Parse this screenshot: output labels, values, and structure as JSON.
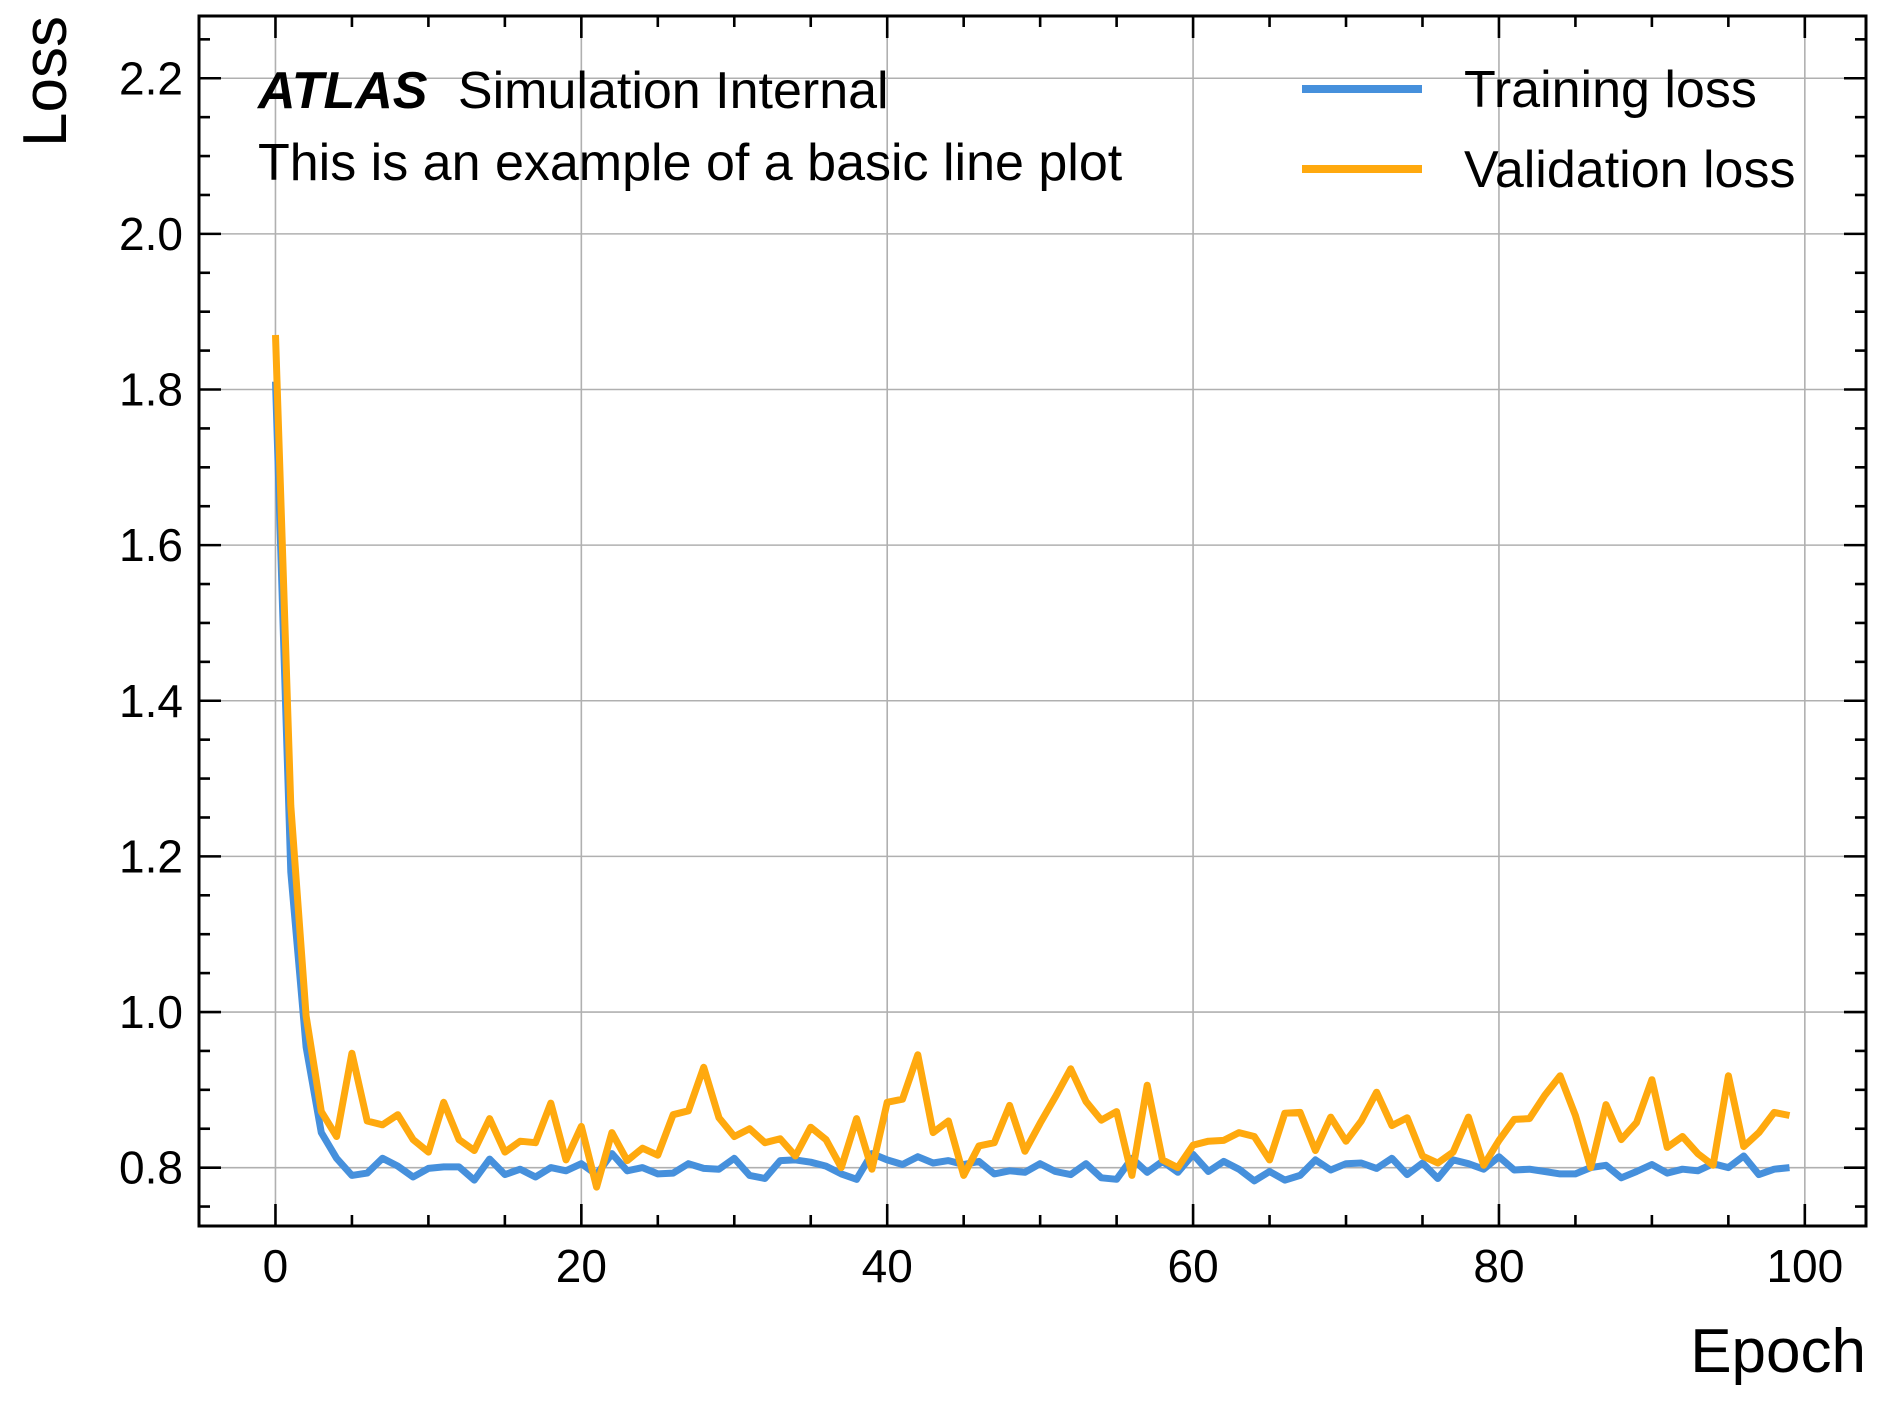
{
  "colors": {
    "training": "#4690dc",
    "validation": "#ffa90e",
    "grid": "#b0b0b0",
    "axes": "#000000"
  },
  "annotation": {
    "experiment": "ATLAS",
    "status": "Simulation Internal",
    "subtitle": "This is an example of a basic line plot"
  },
  "chart_data": {
    "type": "line",
    "title": "",
    "xlabel": "Epoch",
    "ylabel": "Loss",
    "xlim": [
      -5,
      104
    ],
    "ylim": [
      0.725,
      2.28
    ],
    "xticks": [
      0,
      20,
      40,
      60,
      80,
      100
    ],
    "xtick_labels": [
      "0",
      "20",
      "40",
      "60",
      "80",
      "100"
    ],
    "yticks": [
      0.8,
      1.0,
      1.2,
      1.4,
      1.6,
      1.8,
      2.0,
      2.2
    ],
    "ytick_labels": [
      "0.8",
      "1.0",
      "1.2",
      "1.4",
      "1.6",
      "1.8",
      "2.0",
      "2.2"
    ],
    "x_minor_step": 5,
    "y_minor_step": 0.05,
    "grid": true,
    "legend_position": "top-right",
    "series": [
      {
        "name": "Training loss",
        "color": "#4690dc",
        "x": [
          0,
          1,
          2,
          3,
          4,
          5,
          6,
          7,
          8,
          9,
          10,
          11,
          12,
          13,
          14,
          15,
          16,
          17,
          18,
          19,
          20,
          21,
          22,
          23,
          24,
          25,
          26,
          27,
          28,
          29,
          30,
          31,
          32,
          33,
          34,
          35,
          36,
          37,
          38,
          39,
          40,
          41,
          42,
          43,
          44,
          45,
          46,
          47,
          48,
          49,
          50,
          51,
          52,
          53,
          54,
          55,
          56,
          57,
          58,
          59,
          60,
          61,
          62,
          63,
          64,
          65,
          66,
          67,
          68,
          69,
          70,
          71,
          72,
          73,
          74,
          75,
          76,
          77,
          78,
          79,
          80,
          81,
          82,
          83,
          84,
          85,
          86,
          87,
          88,
          89,
          90,
          91,
          92,
          93,
          94,
          95,
          96,
          97,
          98,
          99
        ],
        "values": [
          1.81,
          1.18,
          0.955,
          0.845,
          0.812,
          0.79,
          0.793,
          0.812,
          0.802,
          0.788,
          0.799,
          0.801,
          0.801,
          0.784,
          0.811,
          0.791,
          0.798,
          0.788,
          0.8,
          0.796,
          0.805,
          0.791,
          0.818,
          0.796,
          0.8,
          0.792,
          0.793,
          0.805,
          0.799,
          0.798,
          0.812,
          0.79,
          0.786,
          0.809,
          0.81,
          0.807,
          0.802,
          0.792,
          0.785,
          0.818,
          0.81,
          0.804,
          0.814,
          0.806,
          0.809,
          0.804,
          0.808,
          0.792,
          0.796,
          0.794,
          0.805,
          0.795,
          0.791,
          0.805,
          0.787,
          0.785,
          0.812,
          0.794,
          0.808,
          0.794,
          0.817,
          0.795,
          0.808,
          0.798,
          0.783,
          0.795,
          0.784,
          0.79,
          0.81,
          0.797,
          0.805,
          0.806,
          0.799,
          0.812,
          0.791,
          0.806,
          0.786,
          0.81,
          0.805,
          0.798,
          0.814,
          0.797,
          0.798,
          0.795,
          0.792,
          0.792,
          0.8,
          0.803,
          0.787,
          0.795,
          0.804,
          0.793,
          0.798,
          0.796,
          0.805,
          0.8,
          0.815,
          0.791,
          0.798,
          0.8
        ]
      },
      {
        "name": "Validation loss",
        "color": "#ffa90e",
        "x": [
          0,
          1,
          2,
          3,
          4,
          5,
          6,
          7,
          8,
          9,
          10,
          11,
          12,
          13,
          14,
          15,
          16,
          17,
          18,
          19,
          20,
          21,
          22,
          23,
          24,
          25,
          26,
          27,
          28,
          29,
          30,
          31,
          32,
          33,
          34,
          35,
          36,
          37,
          38,
          39,
          40,
          41,
          42,
          43,
          44,
          45,
          46,
          47,
          48,
          49,
          50,
          51,
          52,
          53,
          54,
          55,
          56,
          57,
          58,
          59,
          60,
          61,
          62,
          63,
          64,
          65,
          66,
          67,
          68,
          69,
          70,
          71,
          72,
          73,
          74,
          75,
          76,
          77,
          78,
          79,
          80,
          81,
          82,
          83,
          84,
          85,
          86,
          87,
          88,
          89,
          90,
          91,
          92,
          93,
          94,
          95,
          96,
          97,
          98,
          99
        ],
        "values": [
          1.87,
          1.265,
          0.995,
          0.872,
          0.84,
          0.947,
          0.86,
          0.855,
          0.868,
          0.836,
          0.82,
          0.884,
          0.836,
          0.822,
          0.863,
          0.82,
          0.834,
          0.832,
          0.883,
          0.81,
          0.853,
          0.775,
          0.845,
          0.809,
          0.825,
          0.816,
          0.868,
          0.873,
          0.929,
          0.864,
          0.84,
          0.85,
          0.832,
          0.837,
          0.815,
          0.852,
          0.836,
          0.8,
          0.863,
          0.798,
          0.884,
          0.888,
          0.945,
          0.845,
          0.86,
          0.79,
          0.828,
          0.832,
          0.88,
          0.821,
          0.857,
          0.891,
          0.927,
          0.885,
          0.861,
          0.872,
          0.79,
          0.906,
          0.81,
          0.8,
          0.829,
          0.834,
          0.835,
          0.845,
          0.84,
          0.81,
          0.87,
          0.871,
          0.822,
          0.865,
          0.834,
          0.86,
          0.897,
          0.854,
          0.864,
          0.815,
          0.806,
          0.82,
          0.865,
          0.803,
          0.835,
          0.862,
          0.863,
          0.893,
          0.918,
          0.867,
          0.8,
          0.881,
          0.836,
          0.858,
          0.913,
          0.826,
          0.84,
          0.818,
          0.803,
          0.918,
          0.827,
          0.845,
          0.871,
          0.867
        ]
      }
    ]
  }
}
